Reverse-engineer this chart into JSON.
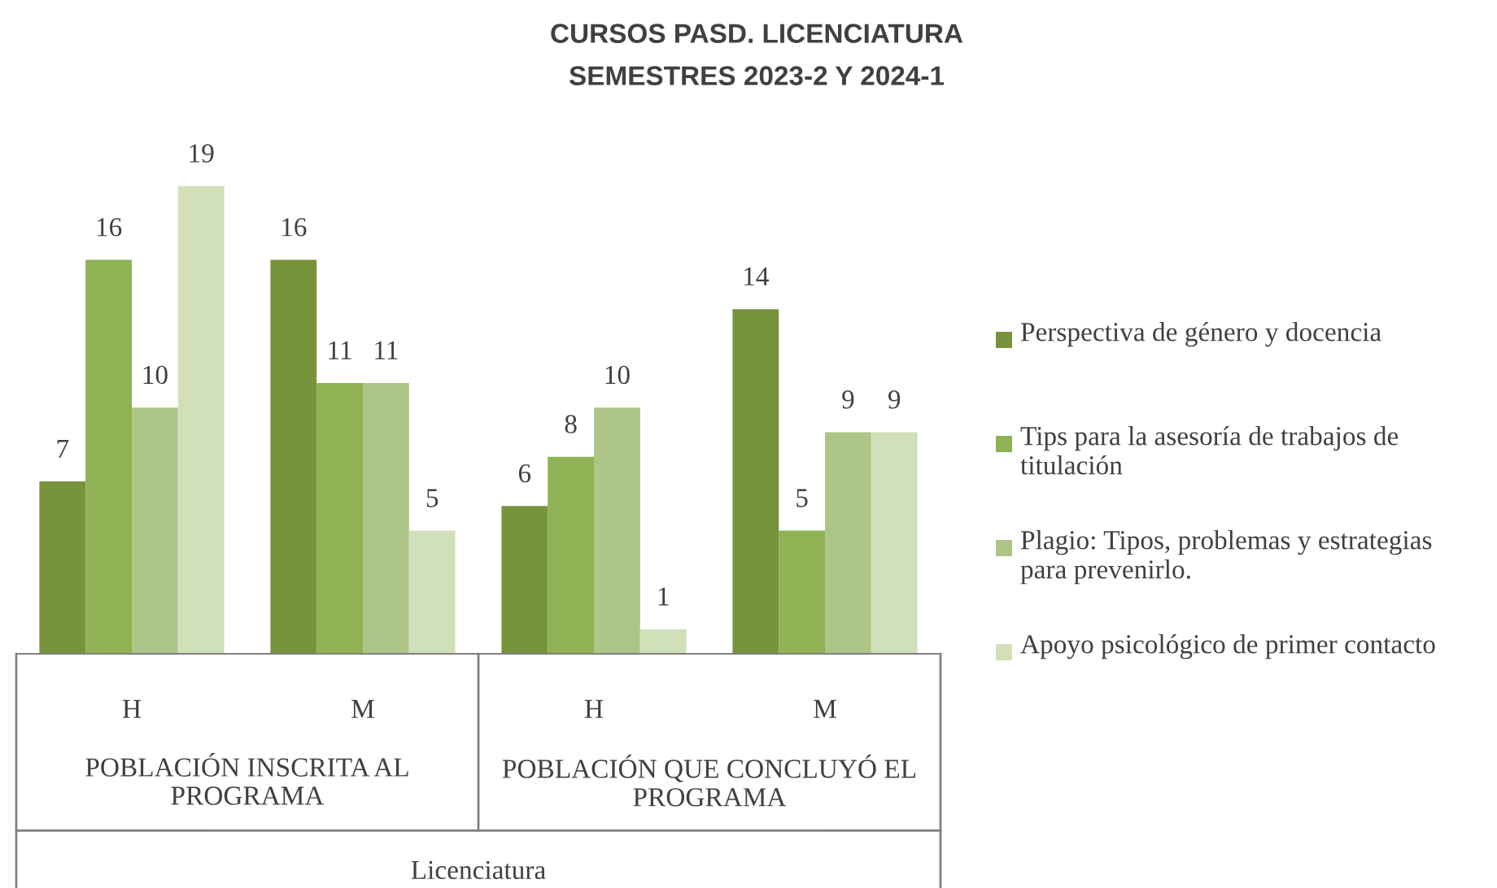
{
  "chart_data": {
    "type": "bar",
    "title": "CURSOS PASD. LICENCIATURA",
    "subtitle": "SEMESTRES 2023-2 Y 2024-1",
    "categories": [
      "H",
      "M",
      "H",
      "M"
    ],
    "annotations": [
      "POBLACIÓN INSCRITA AL PROGRAMA",
      "POBLACIÓN QUE CONCLUYÓ EL PROGRAMA",
      "Licenciatura"
    ],
    "series": [
      {
        "name": "Perspectiva de género y docencia",
        "color": "#77933c",
        "values": [
          7,
          16,
          6,
          14
        ]
      },
      {
        "name": "Tips para la asesoría de trabajos de titulación",
        "color": "#8fb254",
        "values": [
          16,
          11,
          8,
          5
        ]
      },
      {
        "name": "Plagio: Tipos, problemas y estrategias para prevenirlo.",
        "color": "#adc688",
        "values": [
          10,
          11,
          10,
          9
        ]
      },
      {
        "name": "Apoyo psicológico de primer contacto",
        "color": "#d1e0b9",
        "values": [
          19,
          5,
          1,
          9
        ]
      }
    ],
    "data_labels": true,
    "legend": "right",
    "grid": false
  }
}
